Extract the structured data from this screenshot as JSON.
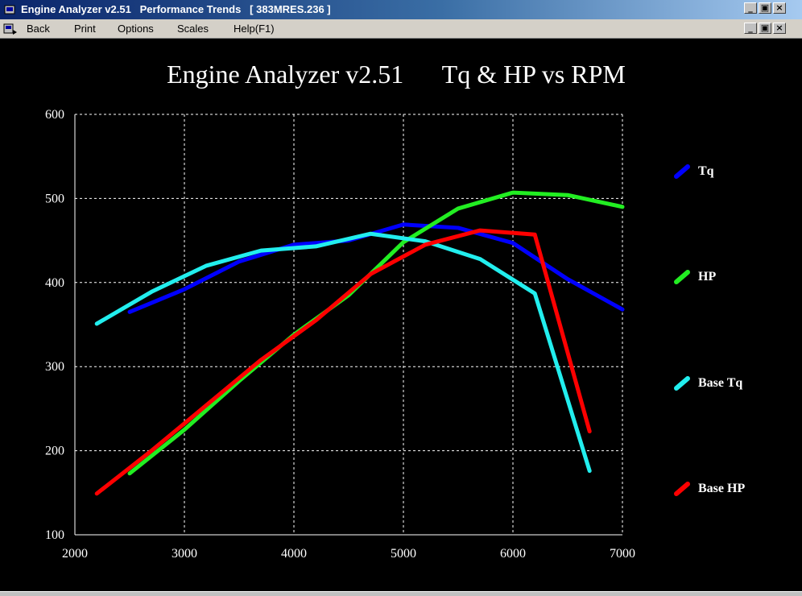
{
  "window": {
    "title": "Engine Analyzer v2.51   Performance Trends   [ 383MRES.236 ]",
    "controls": [
      "_",
      "▣",
      "×"
    ]
  },
  "menu": {
    "items": [
      "Back",
      "Print",
      "Options",
      "Scales",
      "Help(F1)"
    ]
  },
  "colors": {
    "tq": "#0000ff",
    "hp": "#22ee22",
    "base_tq": "#22eeee",
    "base_hp": "#ff0000",
    "grid": "#ffffff",
    "background": "#000000"
  },
  "chart_data": {
    "type": "line",
    "title": "Engine Analyzer v2.51      Tq & HP vs RPM",
    "xlabel": "",
    "ylabel": "",
    "xlim": [
      2000,
      7000
    ],
    "ylim": [
      100,
      600
    ],
    "xticks": [
      2000,
      3000,
      4000,
      5000,
      6000,
      7000
    ],
    "yticks": [
      100,
      200,
      300,
      400,
      500,
      600
    ],
    "grid": true,
    "legend": "right",
    "series": [
      {
        "name": "Tq",
        "color": "#0000ff",
        "x": [
          2500,
          3000,
          3500,
          4000,
          4500,
          5000,
          5500,
          6000,
          6500,
          7000
        ],
        "y": [
          365,
          392,
          425,
          445,
          450,
          469,
          465,
          447,
          404,
          368
        ]
      },
      {
        "name": "HP",
        "color": "#22ee22",
        "x": [
          2500,
          3000,
          3500,
          4000,
          4500,
          5000,
          5500,
          6000,
          6500,
          7000
        ],
        "y": [
          173,
          225,
          283,
          338,
          385,
          448,
          488,
          507,
          504,
          490
        ]
      },
      {
        "name": "Base Tq",
        "color": "#22eeee",
        "x": [
          2200,
          2700,
          3200,
          3700,
          4200,
          4700,
          5200,
          5700,
          6200,
          6700
        ],
        "y": [
          351,
          389,
          420,
          438,
          443,
          458,
          449,
          428,
          387,
          176
        ]
      },
      {
        "name": "Base HP",
        "color": "#ff0000",
        "x": [
          2200,
          2700,
          3200,
          3700,
          4200,
          4700,
          5200,
          5700,
          6200,
          6700
        ],
        "y": [
          149,
          200,
          254,
          308,
          355,
          410,
          445,
          462,
          457,
          223
        ]
      }
    ]
  }
}
